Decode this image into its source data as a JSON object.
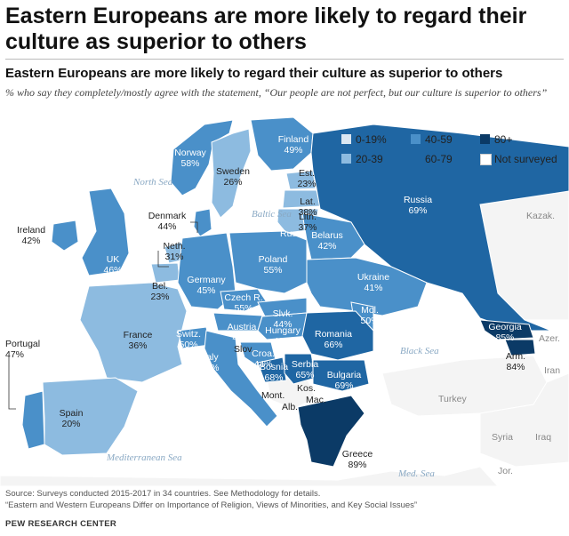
{
  "header": {
    "title": "Eastern Europeans are more likely to regard their culture as superior to others",
    "subtitle": "Eastern Europeans are more likely to regard their culture as superior to others",
    "description": "% who say they completely/mostly agree with the statement, “Our people are not perfect, but our culture is superior to others”"
  },
  "legend": {
    "items": [
      {
        "label": "0-19%",
        "color": "#dbe7f2"
      },
      {
        "label": "20-39",
        "color": "#8dbbe0"
      },
      {
        "label": "40-59",
        "color": "#4a90c9"
      },
      {
        "label": "60-79",
        "color": "#1f66a3"
      },
      {
        "label": "80+",
        "color": "#0b3a66"
      },
      {
        "label": "Not surveyed",
        "color": "#ffffff"
      }
    ]
  },
  "countries": [
    {
      "name": "Norway",
      "value": "58%",
      "color": "#4a90c9"
    },
    {
      "name": "Sweden",
      "value": "26%",
      "color": "#8dbbe0"
    },
    {
      "name": "Finland",
      "value": "49%",
      "color": "#4a90c9"
    },
    {
      "name": "Est.",
      "value": "23%",
      "color": "#8dbbe0"
    },
    {
      "name": "Lat.",
      "value": "38%",
      "color": "#8dbbe0"
    },
    {
      "name": "Lith.",
      "value": "37%",
      "color": "#8dbbe0"
    },
    {
      "name": "Russia",
      "value": "69%",
      "color": "#1f66a3"
    },
    {
      "name": "Ireland",
      "value": "42%",
      "color": "#4a90c9"
    },
    {
      "name": "UK",
      "value": "46%",
      "color": "#4a90c9"
    },
    {
      "name": "Denmark",
      "value": "44%",
      "color": "#4a90c9"
    },
    {
      "name": "Neth.",
      "value": "31%",
      "color": "#8dbbe0"
    },
    {
      "name": "Bel.",
      "value": "23%",
      "color": "#8dbbe0"
    },
    {
      "name": "Germany",
      "value": "45%",
      "color": "#4a90c9"
    },
    {
      "name": "Poland",
      "value": "55%",
      "color": "#4a90c9"
    },
    {
      "name": "Belarus",
      "value": "42%",
      "color": "#4a90c9"
    },
    {
      "name": "Ukraine",
      "value": "41%",
      "color": "#4a90c9"
    },
    {
      "name": "Czech R.",
      "value": "55%",
      "color": "#4a90c9"
    },
    {
      "name": "Slvk.",
      "value": "44%",
      "color": "#4a90c9"
    },
    {
      "name": "Austria",
      "value": "47%",
      "color": "#4a90c9"
    },
    {
      "name": "Hungary",
      "value": "46%",
      "color": "#4a90c9"
    },
    {
      "name": "Mol.",
      "value": "50%",
      "color": "#4a90c9"
    },
    {
      "name": "Romania",
      "value": "66%",
      "color": "#1f66a3"
    },
    {
      "name": "France",
      "value": "36%",
      "color": "#8dbbe0"
    },
    {
      "name": "Switz.",
      "value": "50%",
      "color": "#4a90c9"
    },
    {
      "name": "Italy",
      "value": "47%",
      "color": "#4a90c9"
    },
    {
      "name": "Croa.",
      "value": "44%",
      "color": "#4a90c9"
    },
    {
      "name": "Bosnia",
      "value": "68%",
      "color": "#1f66a3"
    },
    {
      "name": "Serbia",
      "value": "65%",
      "color": "#1f66a3"
    },
    {
      "name": "Bulgaria",
      "value": "69%",
      "color": "#1f66a3"
    },
    {
      "name": "Greece",
      "value": "89%",
      "color": "#0b3a66"
    },
    {
      "name": "Georgia",
      "value": "85%",
      "color": "#0b3a66"
    },
    {
      "name": "Arm.",
      "value": "84%",
      "color": "#0b3a66"
    },
    {
      "name": "Portugal",
      "value": "47%",
      "color": "#4a90c9"
    },
    {
      "name": "Spain",
      "value": "20%",
      "color": "#8dbbe0"
    }
  ],
  "small_labels": {
    "rus": "Rus.",
    "slov": "Slov.",
    "mont": "Mont.",
    "kos": "Kos.",
    "alb": "Alb.",
    "mac": "Mac."
  },
  "other_labels": {
    "kazak": "Kazak.",
    "azer": "Azer.",
    "iran": "Iran",
    "turkey": "Turkey",
    "syria": "Syria",
    "iraq": "Iraq",
    "jor": "Jor."
  },
  "seas": {
    "north": "North Sea",
    "baltic": "Baltic Sea",
    "black": "Black Sea",
    "mediterranean": "Mediterranean Sea",
    "med": "Med. Sea"
  },
  "colors": {
    "land_not_surveyed": "#f4f4f4",
    "water": "#ffffff",
    "border": "#ffffff"
  },
  "footer": {
    "source": "Source: Surveys conducted 2015-2017 in 34 countries. See Methodology for details.",
    "report": "“Eastern and Western Europeans Differ on Importance of Religion, Views of Minorities, and Key Social Issues”",
    "credit": "PEW RESEARCH CENTER"
  }
}
